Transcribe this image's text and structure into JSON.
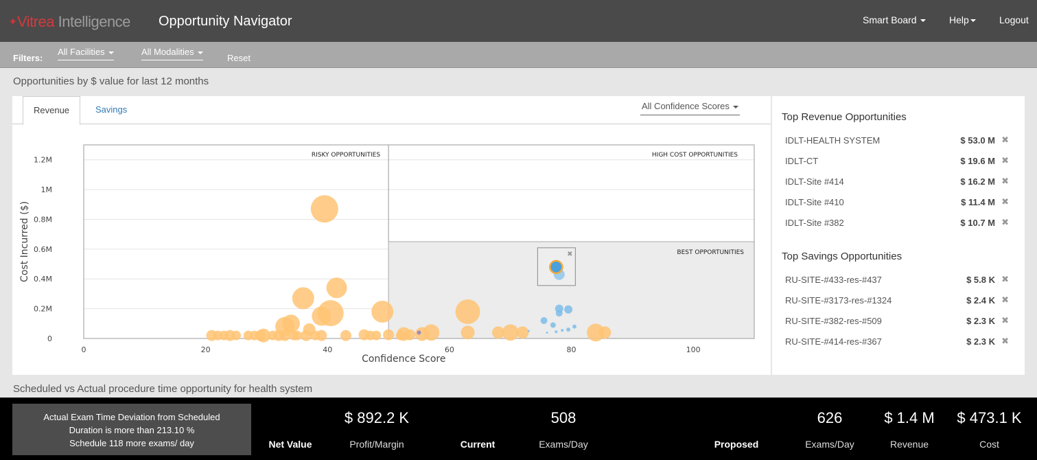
{
  "header": {
    "logo_brand": "Vitrea",
    "logo_product": "Intelligence",
    "app_title": "Opportunity Navigator",
    "nav": [
      {
        "label": "Smart Board"
      },
      {
        "label": "Help"
      },
      {
        "label": "Logout"
      }
    ]
  },
  "filters": {
    "label": "Filters:",
    "facility": "All Facilities",
    "modality": "All Modalities",
    "reset": "Reset"
  },
  "section_title": "Opportunities by $ value for last 12 months",
  "tabs": [
    {
      "label": "Revenue",
      "active": true
    },
    {
      "label": "Savings",
      "active": false
    }
  ],
  "confidence_filter": "All Confidence Scores",
  "chart_data": {
    "type": "scatter",
    "xlabel": "Confidence Score",
    "ylabel": "Cost Incurred ($)",
    "xlim": [
      0,
      110
    ],
    "ylim": [
      0,
      1300000
    ],
    "x_ticks": [
      "0",
      "20",
      "40",
      "60",
      "80",
      "100"
    ],
    "y_ticks": [
      "0",
      "0.2M",
      "0.4M",
      "0.6M",
      "0.8M",
      "1M",
      "1.2M"
    ],
    "quadrant_labels": [
      "RISKY OPPORTUNITIES",
      "HIGH COST OPPORTUNITIES",
      "BEST OPPORTUNITIES"
    ],
    "grid": true,
    "series": [
      {
        "color": "#ffc474",
        "points": [
          {
            "x": 39.5,
            "y": 870000,
            "r": 20
          },
          {
            "x": 41.5,
            "y": 340000,
            "r": 15
          },
          {
            "x": 36.0,
            "y": 270000,
            "r": 16
          },
          {
            "x": 40.5,
            "y": 170000,
            "r": 19
          },
          {
            "x": 39.0,
            "y": 150000,
            "r": 14
          },
          {
            "x": 34.0,
            "y": 100000,
            "r": 13
          },
          {
            "x": 33.0,
            "y": 80000,
            "r": 14
          },
          {
            "x": 49.0,
            "y": 180000,
            "r": 16
          },
          {
            "x": 63.0,
            "y": 180000,
            "r": 18
          },
          {
            "x": 37.0,
            "y": 60000,
            "r": 9
          },
          {
            "x": 84.0,
            "y": 40000,
            "r": 13
          },
          {
            "x": 57.0,
            "y": 40000,
            "r": 12
          },
          {
            "x": 70.0,
            "y": 40000,
            "r": 12
          },
          {
            "x": 63.0,
            "y": 40000,
            "r": 10
          },
          {
            "x": 68.0,
            "y": 40000,
            "r": 9
          },
          {
            "x": 72.0,
            "y": 40000,
            "r": 9
          },
          {
            "x": 85.5,
            "y": 40000,
            "r": 9
          },
          {
            "x": 21.0,
            "y": 20000,
            "r": 8
          },
          {
            "x": 22.0,
            "y": 20000,
            "r": 7
          },
          {
            "x": 23.0,
            "y": 20000,
            "r": 7
          },
          {
            "x": 24.0,
            "y": 20000,
            "r": 8
          },
          {
            "x": 25.0,
            "y": 20000,
            "r": 7
          },
          {
            "x": 27.0,
            "y": 20000,
            "r": 7
          },
          {
            "x": 28.0,
            "y": 20000,
            "r": 7
          },
          {
            "x": 29.0,
            "y": 20000,
            "r": 8
          },
          {
            "x": 29.5,
            "y": 20000,
            "r": 10
          },
          {
            "x": 31.0,
            "y": 20000,
            "r": 7
          },
          {
            "x": 32.0,
            "y": 20000,
            "r": 8
          },
          {
            "x": 33.0,
            "y": 20000,
            "r": 8
          },
          {
            "x": 34.5,
            "y": 20000,
            "r": 7
          },
          {
            "x": 35.0,
            "y": 20000,
            "r": 7
          },
          {
            "x": 36.5,
            "y": 20000,
            "r": 8
          },
          {
            "x": 38.0,
            "y": 20000,
            "r": 7
          },
          {
            "x": 39.0,
            "y": 20000,
            "r": 8
          },
          {
            "x": 43.0,
            "y": 20000,
            "r": 8
          },
          {
            "x": 46.0,
            "y": 25000,
            "r": 8
          },
          {
            "x": 47.0,
            "y": 20000,
            "r": 7
          },
          {
            "x": 48.0,
            "y": 20000,
            "r": 7
          },
          {
            "x": 50.0,
            "y": 25000,
            "r": 8
          },
          {
            "x": 52.5,
            "y": 30000,
            "r": 10
          },
          {
            "x": 53.5,
            "y": 25000,
            "r": 8
          },
          {
            "x": 55.5,
            "y": 30000,
            "r": 10
          },
          {
            "x": 52.0,
            "y": 20000,
            "r": 7
          }
        ]
      },
      {
        "color": "#7fbde9",
        "points": [
          {
            "x": 77.5,
            "y": 480000,
            "r": 9
          },
          {
            "x": 78.0,
            "y": 430000,
            "r": 8
          },
          {
            "x": 78.0,
            "y": 200000,
            "r": 6
          },
          {
            "x": 79.5,
            "y": 195000,
            "r": 6
          },
          {
            "x": 78.0,
            "y": 170000,
            "r": 5
          },
          {
            "x": 75.5,
            "y": 120000,
            "r": 5
          },
          {
            "x": 77.0,
            "y": 90000,
            "r": 4
          },
          {
            "x": 80.5,
            "y": 80000,
            "r": 3
          },
          {
            "x": 79.5,
            "y": 60000,
            "r": 3
          },
          {
            "x": 78.5,
            "y": 55000,
            "r": 2
          },
          {
            "x": 77.5,
            "y": 45000,
            "r": 2
          },
          {
            "x": 76.0,
            "y": 40000,
            "r": 1.5
          },
          {
            "x": 73.0,
            "y": 50000,
            "r": 1.5
          }
        ]
      },
      {
        "color": "#8e7fc4",
        "points": [
          {
            "x": 55.0,
            "y": 40000,
            "r": 3
          }
        ]
      }
    ],
    "highlight_point": {
      "x": 77.5,
      "y": 480000
    }
  },
  "top_revenue": {
    "title": "Top Revenue Opportunities",
    "items": [
      {
        "name": "IDLT-HEALTH SYSTEM",
        "value": "$ 53.0 M"
      },
      {
        "name": "IDLT-CT",
        "value": "$ 19.6 M"
      },
      {
        "name": "IDLT-Site #414",
        "value": "$ 16.2 M"
      },
      {
        "name": "IDLT-Site #410",
        "value": "$ 11.4 M"
      },
      {
        "name": "IDLT-Site #382",
        "value": "$ 10.7 M"
      }
    ]
  },
  "top_savings": {
    "title": "Top Savings Opportunities",
    "items": [
      {
        "name": "RU-SITE-#433-res-#437",
        "value": "$ 5.8 K"
      },
      {
        "name": "RU-SITE-#3173-res-#1324",
        "value": "$ 2.4 K"
      },
      {
        "name": "RU-SITE-#382-res-#509",
        "value": "$ 2.3 K"
      },
      {
        "name": "RU-SITE-#414-res-#367",
        "value": "$ 2.3 K"
      }
    ]
  },
  "section2_title": "Scheduled vs Actual procedure time opportunity for health system",
  "summary": {
    "alert_lines": [
      "Actual Exam Time Deviation from Scheduled",
      "Duration is more than 213.10 %",
      "Schedule 118 more exams/ day"
    ],
    "net_value_label": "Net Value",
    "profit_value": "$ 892.2 K",
    "profit_label": "Profit/Margin",
    "current_label": "Current",
    "current_exams": "508",
    "current_exams_label": "Exams/Day",
    "proposed_label": "Proposed",
    "proposed_exams": "626",
    "proposed_exams_label": "Exams/Day",
    "revenue_value": "$ 1.4 M",
    "revenue_label": "Revenue",
    "cost_value": "$ 473.1 K",
    "cost_label": "Cost"
  }
}
